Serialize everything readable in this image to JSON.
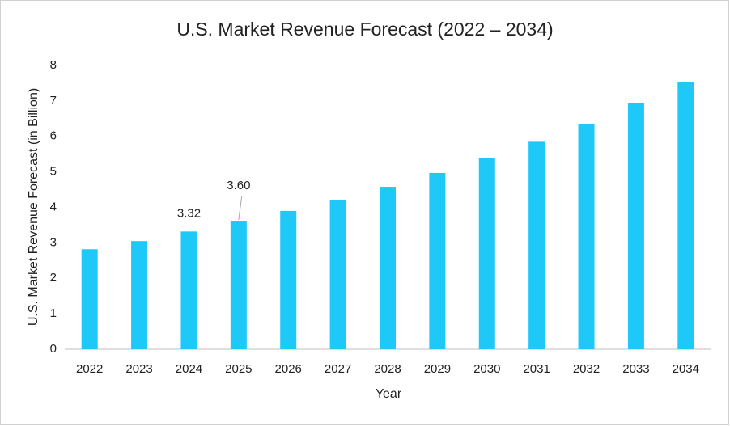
{
  "chart_data": {
    "type": "bar",
    "title": "U.S. Market Revenue Forecast (2022 – 2034)",
    "x_label": "Year",
    "y_label": "U.S. Market Revenue Forecast (in Billion)",
    "categories": [
      "2022",
      "2023",
      "2024",
      "2025",
      "2026",
      "2027",
      "2028",
      "2029",
      "2030",
      "2031",
      "2032",
      "2033",
      "2034"
    ],
    "values": [
      2.82,
      3.05,
      3.32,
      3.6,
      3.9,
      4.21,
      4.58,
      4.97,
      5.4,
      5.85,
      6.36,
      6.95,
      7.54
    ],
    "value_labels": [
      null,
      null,
      "3.32",
      "3.60",
      null,
      null,
      null,
      null,
      null,
      null,
      null,
      null,
      null
    ],
    "color": "#1ec8f7",
    "ylim": [
      0,
      8
    ],
    "yticks": [
      0,
      1,
      2,
      3,
      4,
      5,
      6,
      7,
      8
    ],
    "grid": false
  }
}
